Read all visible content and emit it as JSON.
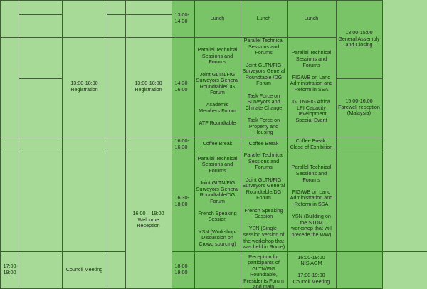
{
  "colors": {
    "light": "#a6da96",
    "dark": "#78c466",
    "border": "#3d5f33"
  },
  "left": {
    "time_17_19": "17:00-\n19:00",
    "registration_1": "13:00-18:00\nRegistration",
    "registration_2": "13:00-18:00\nRegistration",
    "council_meeting": "Council Meeting",
    "welcome_reception": "16:00 – 19:00\nWelcome Reception"
  },
  "times": [
    "13:00-\n14:30",
    "14:30-\n16:00",
    "16:00-\n16:30",
    "16:30-\n18:00",
    "18:00-\n19:00"
  ],
  "col_a": {
    "lunch": "Lunch",
    "s1430": "Parallel Technical Sessions and Forums\n\nJoint GLTN/FIG Surveyors General Roundtable/DG Forum\n\nAcademic Members Forum\n\nATF Roundtable",
    "coffee": "Coffee Break",
    "s1630": "Parallel Technical Sessions and Forums\n\nJoint GLTN/FIG Surveyors General Roundtable/DG Forum\n\nFrench Speaking Session\n\nYSN (Workshop/ Discussion on Crowd sourcing)"
  },
  "col_b": {
    "lunch": "Lunch",
    "s1430": "Parallel Technical Sessions and Forums\n\nJoint GLTN/FIG Surveyors General Roundtable /DG Forum\n\nTask Force on Surveyors and Climate Change\n\nTask Force on Property and Housing",
    "coffee": "Coffee Break",
    "s1630": "Parallel Technical Sessions and Forums\n\nJoint GLTN/FIG Surveyors General Roundtable/DG Forum\n\nFrench Speaking Session\n\nYSN (Single-session version of the workshop that was held in Rome)",
    "s1800": "Reception for participants of GLTN/FIG Roundtable, Presidents Forum and main sponsors"
  },
  "col_c": {
    "lunch": "Lunch",
    "s1430": "Parallel Technical Sessions and Forums\n\nFIG/WB on Land Administration and Reform in SSA\n\nGLTN/FIG Africa LPI Capacity Development Special Event",
    "coffee": "Coffee Break. Close of Exhibition",
    "s1630": "Parallel Technical Sessions and Forums\n\nFIG/WB on Land Administration and Reform in SSA\n\nYSN (Building on the STDM workshop that will precede the WW)",
    "s1800": "16:00-19:00\nNIS AGM\n\n17:00-19:00\nCouncil Meeting"
  },
  "col_d": {
    "general_assembly": "13:00-15:00\nGeneral Assembly and Closing",
    "farewell": "15:00-16:00\nFarewell reception (Malaysia)"
  }
}
